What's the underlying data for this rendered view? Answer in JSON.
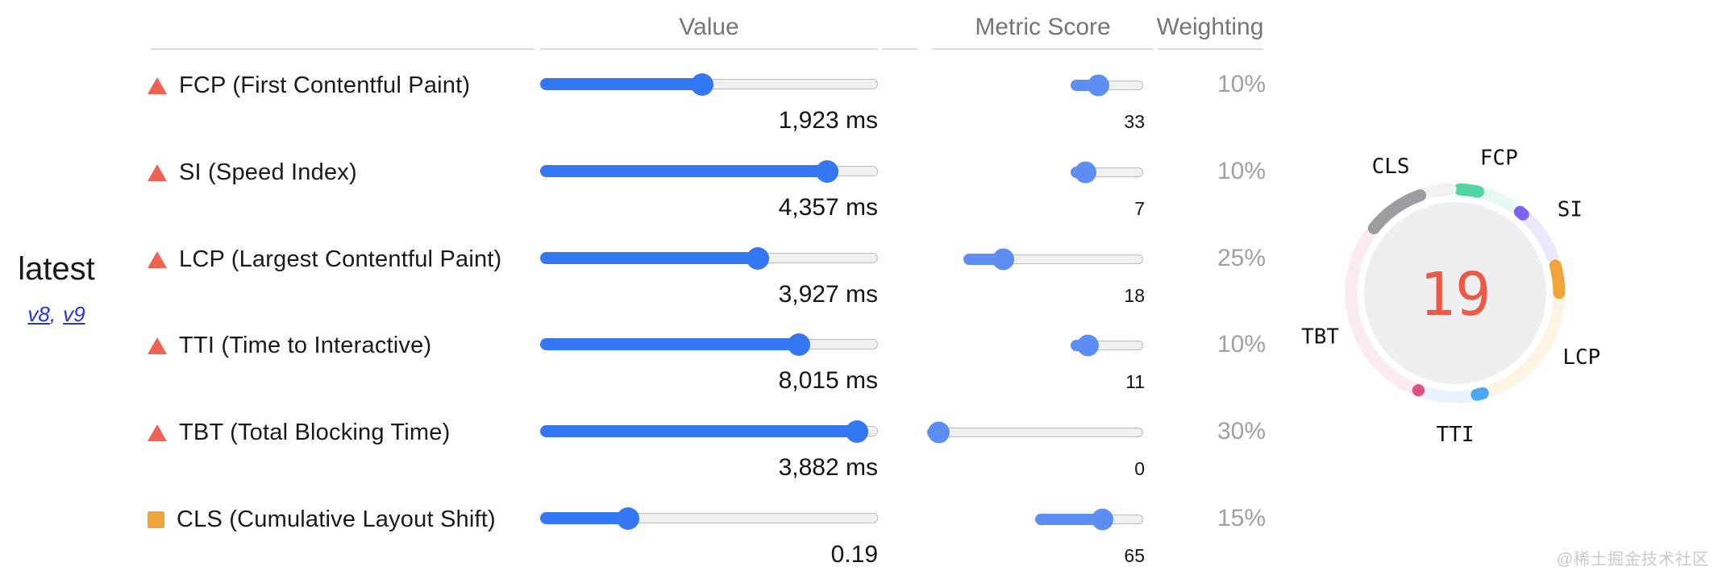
{
  "colors": {
    "value_slider_blue": "#3477f3",
    "score_slider_blue": "#5d8ef3",
    "fail_icon_red": "#ef6254",
    "average_icon_orange": "#f0a43c",
    "gauge_score_red": "#eb5a46",
    "header_gray": "#767676",
    "weight_gray": "#9ea0a4"
  },
  "version_pane": {
    "current": "latest",
    "links": [
      {
        "label": "v8"
      },
      {
        "label": "v9"
      }
    ],
    "separator": ","
  },
  "table": {
    "headers": {
      "value": "Value",
      "metric_score": "Metric Score",
      "weighting": "Weighting"
    },
    "rows": [
      {
        "id": "FCP",
        "label": "FCP (First Contentful Paint)",
        "rating": "fail",
        "value_display": "1,923 ms",
        "value_pos": 0.477,
        "score": 33,
        "score_display": "33",
        "weight": 10,
        "weight_display": "10%"
      },
      {
        "id": "SI",
        "label": "SI (Speed Index)",
        "rating": "fail",
        "value_display": "4,357 ms",
        "value_pos": 0.875,
        "score": 7,
        "score_display": "7",
        "weight": 10,
        "weight_display": "10%"
      },
      {
        "id": "LCP",
        "label": "LCP (Largest Contentful Paint)",
        "rating": "fail",
        "value_display": "3,927 ms",
        "value_pos": 0.655,
        "score": 18,
        "score_display": "18",
        "weight": 25,
        "weight_display": "25%"
      },
      {
        "id": "TTI",
        "label": "TTI (Time to Interactive)",
        "rating": "fail",
        "value_display": "8,015 ms",
        "value_pos": 0.785,
        "score": 11,
        "score_display": "11",
        "weight": 10,
        "weight_display": "10%"
      },
      {
        "id": "TBT",
        "label": "TBT (Total Blocking Time)",
        "rating": "fail",
        "value_display": "3,882 ms",
        "value_pos": 0.97,
        "score": 0,
        "score_display": "0",
        "weight": 30,
        "weight_display": "30%"
      },
      {
        "id": "CLS",
        "label": "CLS (Cumulative Layout Shift)",
        "rating": "average",
        "value_display": "0.19",
        "value_pos": 0.24,
        "score": 65,
        "score_display": "65",
        "weight": 15,
        "weight_display": "15%"
      }
    ]
  },
  "gauge": {
    "score_display": "19",
    "metrics": [
      {
        "id": "FCP",
        "weight": 10,
        "score": 33,
        "color": "#52d7a2",
        "light_color": "#e7f8f1"
      },
      {
        "id": "SI",
        "weight": 10,
        "score": 7,
        "color": "#7d64f2",
        "light_color": "#ebe7fc"
      },
      {
        "id": "LCP",
        "weight": 25,
        "score": 18,
        "color": "#f0a43c",
        "light_color": "#fdf4e3"
      },
      {
        "id": "TTI",
        "weight": 10,
        "score": 11,
        "color": "#4aa8f2",
        "light_color": "#e9f3fd"
      },
      {
        "id": "TBT",
        "weight": 30,
        "score": 0,
        "color": "#e4507e",
        "light_color": "#fbeaf0"
      },
      {
        "id": "CLS",
        "weight": 15,
        "score": 65,
        "color": "#9d9da1",
        "light_color": "#f2f2f4"
      }
    ]
  },
  "watermark": "@稀土掘金技术社区"
}
